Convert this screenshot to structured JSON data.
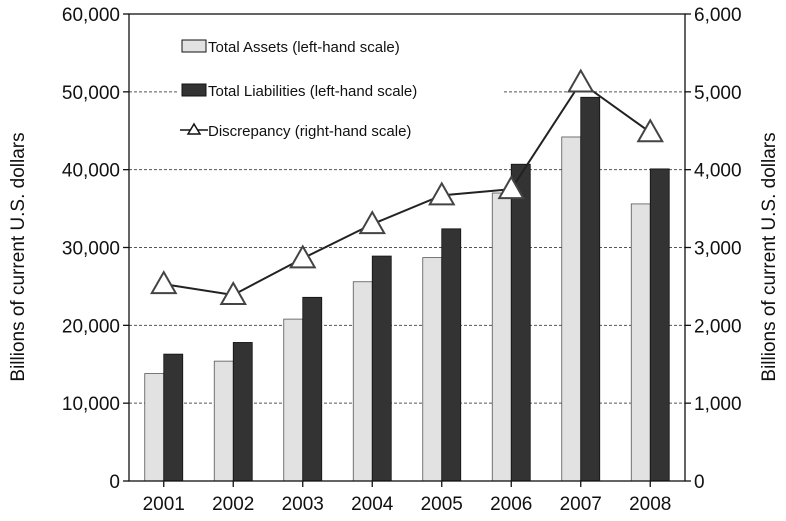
{
  "chart_data": {
    "type": "bar",
    "categories": [
      "2001",
      "2002",
      "2003",
      "2004",
      "2005",
      "2006",
      "2007",
      "2008"
    ],
    "series": [
      {
        "name": "Total Assets (left-hand scale)",
        "type": "bar",
        "axis": "left",
        "color": "#e2e2e2",
        "values": [
          13800,
          15400,
          20800,
          25600,
          28700,
          37000,
          44200,
          35600
        ]
      },
      {
        "name": "Total Liabilities (left-hand scale)",
        "type": "bar",
        "axis": "left",
        "color": "#333333",
        "values": [
          16300,
          17800,
          23600,
          28900,
          32400,
          40700,
          49300,
          40100
        ]
      },
      {
        "name": "Discrepancy (right-hand scale)",
        "type": "line",
        "axis": "right",
        "color": "#222222",
        "marker": "triangle",
        "values": [
          2530,
          2390,
          2860,
          3300,
          3670,
          3750,
          5120,
          4480
        ]
      }
    ],
    "ylabel_left": "Billions of current U.S. dollars",
    "ylabel_right": "Billions of current U.S. dollars",
    "ylim_left": [
      0,
      60000
    ],
    "ylim_right": [
      0,
      6000
    ],
    "yticks_left": [
      "0",
      "10,000",
      "20,000",
      "30,000",
      "40,000",
      "50,000",
      "60,000"
    ],
    "yticks_right": [
      "0",
      "1,000",
      "2,000",
      "3,000",
      "4,000",
      "5,000",
      "6,000"
    ],
    "grid": "horizontal dashed",
    "legend_position": "top-left"
  }
}
